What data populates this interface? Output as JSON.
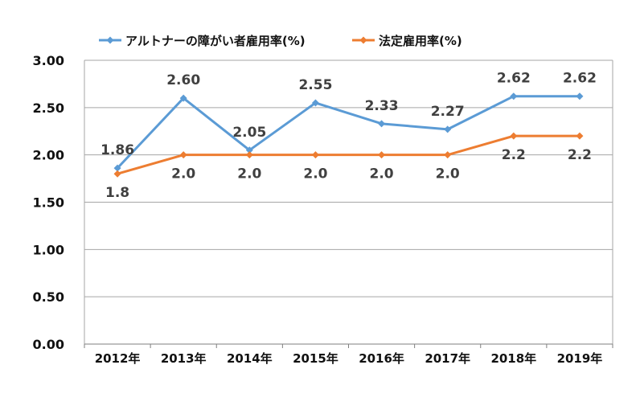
{
  "chart_data": {
    "type": "line",
    "categories": [
      "2012年",
      "2013年",
      "2014年",
      "2015年",
      "2016年",
      "2017年",
      "2018年",
      "2019年"
    ],
    "series": [
      {
        "name": "アルトナーの障がい者雇用率(%)",
        "values": [
          1.86,
          2.6,
          2.05,
          2.55,
          2.33,
          2.27,
          2.62,
          2.62
        ],
        "labels": [
          "1.86",
          "2.60",
          "2.05",
          "2.55",
          "2.33",
          "2.27",
          "2.62",
          "2.62"
        ],
        "color": "#5B9BD5",
        "label_position": "above"
      },
      {
        "name": "法定雇用率(%)",
        "values": [
          1.8,
          2.0,
          2.0,
          2.0,
          2.0,
          2.0,
          2.2,
          2.2
        ],
        "labels": [
          "1.8",
          "2.0",
          "2.0",
          "2.0",
          "2.0",
          "2.0",
          "2.2",
          "2.2"
        ],
        "color": "#ED7D31",
        "label_position": "below"
      }
    ],
    "y_ticks": [
      "0.00",
      "0.50",
      "1.00",
      "1.50",
      "2.00",
      "2.50",
      "3.00"
    ],
    "ylim": [
      0,
      3
    ],
    "grid": true,
    "legend": "top"
  }
}
